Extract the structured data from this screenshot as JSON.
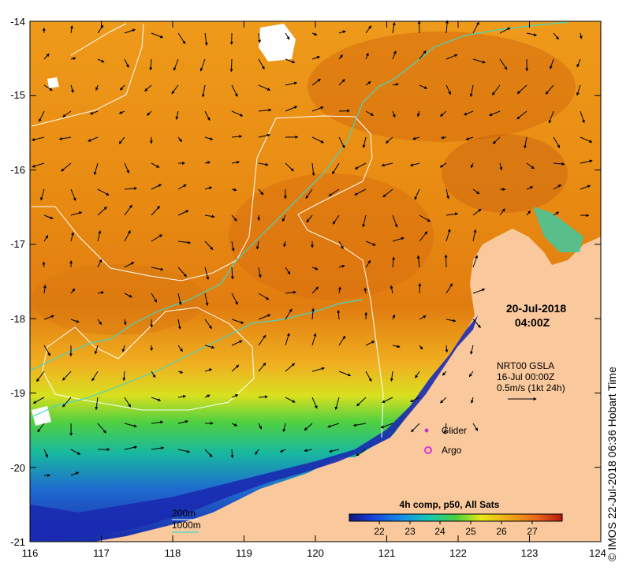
{
  "map": {
    "x_ticks": [
      "116",
      "117",
      "118",
      "119",
      "120",
      "121",
      "122",
      "123",
      "124"
    ],
    "y_ticks": [
      "-14",
      "-15",
      "-16",
      "-17",
      "-18",
      "-19",
      "-20",
      "-21"
    ],
    "date": "20-Jul-2018",
    "time": "04:00Z",
    "gsla_title": "NRT00 GSLA",
    "gsla_date": "16-Jul 00:00Z",
    "gsla_scale": "0.5m/s (1kt 24h)",
    "glider_label": "Glider",
    "argo_label": "Argo",
    "colorbar_title": "4h comp, p50, All Sats",
    "colorbar_ticks": [
      "22",
      "23",
      "24",
      "25",
      "26",
      "27"
    ],
    "contour_200": "200m",
    "contour_1000": "1000m",
    "credit": "© IMOS 22-Jul-2018 06:36 Hobart Time",
    "colors": {
      "land": "#f9c89c",
      "warm_sea": "#e8900f",
      "cool_sea": "#1d36b8",
      "contour_200": "#ffffff",
      "contour_1000": "#40d8c8",
      "glider": "#c03cc8",
      "argo": "#e030e0"
    }
  }
}
